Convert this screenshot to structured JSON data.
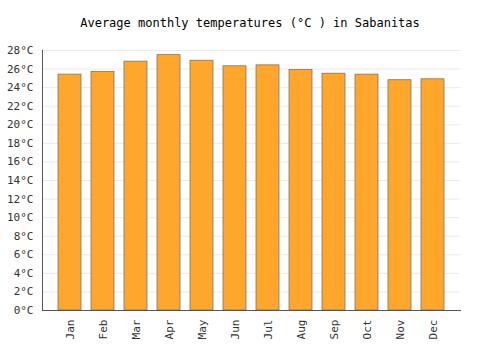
{
  "chart_data": {
    "type": "bar",
    "title": "Average monthly temperatures (°C ) in Sabanitas",
    "categories": [
      "Jan",
      "Feb",
      "Mar",
      "Apr",
      "May",
      "Jun",
      "Jul",
      "Aug",
      "Sep",
      "Oct",
      "Nov",
      "Dec"
    ],
    "values": [
      25.4,
      25.7,
      26.8,
      27.5,
      26.9,
      26.3,
      26.4,
      25.9,
      25.5,
      25.4,
      24.8,
      24.9
    ],
    "color": "#ffa62b",
    "ylim": [
      0,
      28
    ],
    "yticks": [
      {
        "value": 0,
        "label": "0°C"
      },
      {
        "value": 2,
        "label": "2°C"
      },
      {
        "value": 4,
        "label": "4°C"
      },
      {
        "value": 6,
        "label": "6°C"
      },
      {
        "value": 8,
        "label": "8°C"
      },
      {
        "value": 10,
        "label": "10°C"
      },
      {
        "value": 12,
        "label": "12°C"
      },
      {
        "value": 14,
        "label": "14°C"
      },
      {
        "value": 16,
        "label": "16°C"
      },
      {
        "value": 18,
        "label": "18°C"
      },
      {
        "value": 20,
        "label": "20°C"
      },
      {
        "value": 22,
        "label": "22°C"
      },
      {
        "value": 24,
        "label": "24°C"
      },
      {
        "value": 26,
        "label": "26°C"
      },
      {
        "value": 28,
        "label": "28°C"
      }
    ],
    "grid": true
  }
}
